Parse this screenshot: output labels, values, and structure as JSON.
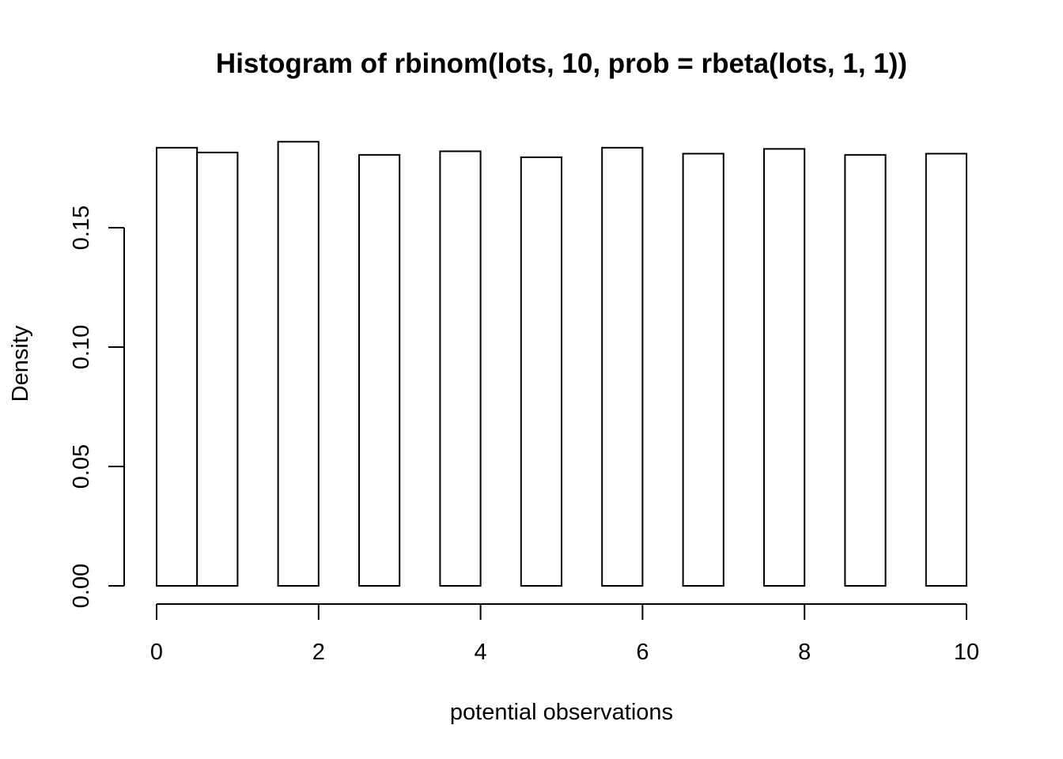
{
  "chart_data": {
    "type": "bar",
    "title": "Histogram of rbinom(lots, 10, prob = rbeta(lots, 1, 1))",
    "xlabel": "potential observations",
    "ylabel": "Density",
    "xlim": [
      0,
      10
    ],
    "ylim": [
      0,
      0.18
    ],
    "x_ticks": [
      0,
      2,
      4,
      6,
      8,
      10
    ],
    "x_tick_labels": [
      "0",
      "2",
      "4",
      "6",
      "8",
      "10"
    ],
    "y_ticks": [
      0.0,
      0.05,
      0.1,
      0.15
    ],
    "y_tick_labels": [
      "0.00",
      "0.05",
      "0.10",
      "0.15"
    ],
    "bins": [
      {
        "start": 0.0,
        "end": 0.5,
        "value": 0.1835
      },
      {
        "start": 0.5,
        "end": 1.0,
        "value": 0.1815
      },
      {
        "start": 1.5,
        "end": 2.0,
        "value": 0.186
      },
      {
        "start": 2.5,
        "end": 3.0,
        "value": 0.1805
      },
      {
        "start": 3.5,
        "end": 4.0,
        "value": 0.182
      },
      {
        "start": 4.5,
        "end": 5.0,
        "value": 0.1795
      },
      {
        "start": 5.5,
        "end": 6.0,
        "value": 0.1835
      },
      {
        "start": 6.5,
        "end": 7.0,
        "value": 0.181
      },
      {
        "start": 7.5,
        "end": 8.0,
        "value": 0.183
      },
      {
        "start": 8.5,
        "end": 9.0,
        "value": 0.1805
      },
      {
        "start": 9.5,
        "end": 10.0,
        "value": 0.181
      }
    ],
    "grid": false,
    "legend": "none"
  }
}
